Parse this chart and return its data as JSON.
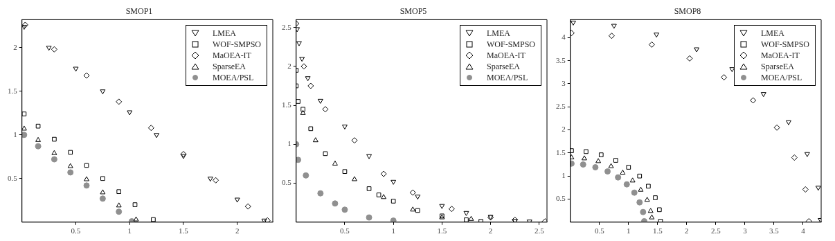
{
  "chart_data": [
    {
      "type": "scatter",
      "title": "SMOP1",
      "xlim": [
        0,
        2.33
      ],
      "ylim": [
        0,
        2.32
      ],
      "xticks": [
        0.5,
        1,
        1.5,
        2
      ],
      "yticks": [
        0.5,
        1,
        1.5,
        2
      ],
      "grid": false,
      "legend": "top right",
      "series": [
        {
          "name": "LMEA",
          "color": "#000000",
          "marker": "triangle-down",
          "x": [
            0.02,
            0.25,
            0.5,
            0.75,
            1.0,
            1.25,
            1.5,
            1.75,
            2.0,
            2.25
          ],
          "values": [
            2.24,
            2.0,
            1.76,
            1.5,
            1.26,
            1.0,
            0.76,
            0.5,
            0.26,
            0.02
          ]
        },
        {
          "name": "WOF-SMPSO",
          "color": "#000000",
          "marker": "square",
          "x": [
            0.02,
            0.15,
            0.3,
            0.45,
            0.6,
            0.75,
            0.9,
            1.05,
            1.22
          ],
          "values": [
            1.24,
            1.1,
            0.95,
            0.8,
            0.65,
            0.5,
            0.35,
            0.2,
            0.03
          ]
        },
        {
          "name": "MaOEA-IT",
          "color": "#000000",
          "marker": "diamond",
          "x": [
            0.03,
            0.3,
            0.6,
            0.9,
            1.2,
            1.5,
            1.8,
            2.1,
            2.28
          ],
          "values": [
            2.26,
            1.98,
            1.68,
            1.38,
            1.08,
            0.78,
            0.48,
            0.18,
            0.02
          ]
        },
        {
          "name": "SparseEA",
          "color": "#000000",
          "marker": "triangle",
          "x": [
            0.02,
            0.15,
            0.3,
            0.45,
            0.6,
            0.75,
            0.9,
            1.06
          ],
          "values": [
            1.07,
            0.94,
            0.79,
            0.64,
            0.49,
            0.34,
            0.19,
            0.03
          ]
        },
        {
          "name": "MOEA/PSL",
          "color": "#909090",
          "marker": "circle",
          "x": [
            0.02,
            0.15,
            0.3,
            0.45,
            0.6,
            0.75,
            0.9,
            1.02
          ],
          "values": [
            1.0,
            0.87,
            0.72,
            0.57,
            0.42,
            0.27,
            0.12,
            0.01
          ]
        }
      ]
    },
    {
      "type": "scatter",
      "title": "SMOP5",
      "xlim": [
        0,
        2.58
      ],
      "ylim": [
        0,
        2.6
      ],
      "xticks": [
        0.5,
        1,
        1.5,
        2,
        2.5
      ],
      "yticks": [
        0.5,
        1,
        1.5,
        2,
        2.5
      ],
      "grid": false,
      "legend": "top right",
      "series": [
        {
          "name": "LMEA",
          "color": "#000000",
          "marker": "triangle-down",
          "x": [
            0.01,
            0.03,
            0.06,
            0.12,
            0.25,
            0.5,
            0.75,
            1.0,
            1.25,
            1.5,
            1.75,
            2.0,
            2.25,
            2.4
          ],
          "values": [
            2.48,
            2.3,
            2.1,
            1.85,
            1.56,
            1.23,
            0.85,
            0.52,
            0.33,
            0.21,
            0.12,
            0.07,
            0.02,
            0.01
          ]
        },
        {
          "name": "WOF-SMPSO",
          "color": "#000000",
          "marker": "square",
          "x": [
            0.0,
            0.0,
            0.02,
            0.07,
            0.15,
            0.3,
            0.5,
            0.75,
            0.85,
            1.0,
            1.25,
            1.5,
            1.75,
            1.9
          ],
          "values": [
            1.95,
            1.75,
            1.55,
            1.45,
            1.2,
            0.88,
            0.65,
            0.43,
            0.35,
            0.27,
            0.15,
            0.08,
            0.03,
            0.01
          ]
        },
        {
          "name": "MaOEA-IT",
          "color": "#000000",
          "marker": "diamond",
          "x": [
            0.0,
            0.08,
            0.15,
            0.3,
            0.6,
            0.9,
            1.2,
            1.6,
            2.0,
            2.25,
            2.56
          ],
          "values": [
            2.55,
            2.0,
            1.75,
            1.45,
            1.05,
            0.62,
            0.38,
            0.17,
            0.06,
            0.03,
            0.01
          ]
        },
        {
          "name": "SparseEA",
          "color": "#000000",
          "marker": "triangle",
          "x": [
            0.07,
            0.2,
            0.4,
            0.6,
            0.9,
            1.2,
            1.5,
            1.8
          ],
          "values": [
            1.4,
            1.05,
            0.75,
            0.55,
            0.32,
            0.16,
            0.06,
            0.04
          ]
        },
        {
          "name": "MOEA/PSL",
          "color": "#909090",
          "marker": "circle",
          "x": [
            0.0,
            0.02,
            0.1,
            0.25,
            0.4,
            0.5,
            0.75,
            1.0
          ],
          "values": [
            1.0,
            0.8,
            0.6,
            0.37,
            0.24,
            0.16,
            0.06,
            0.02
          ]
        }
      ]
    },
    {
      "type": "scatter",
      "title": "SMOP8",
      "xlim": [
        0,
        4.31
      ],
      "ylim": [
        0,
        4.39
      ],
      "xticks": [
        0.5,
        1,
        1.5,
        2,
        2.5,
        3,
        3.5,
        4
      ],
      "yticks": [
        0.5,
        1,
        1.5,
        2,
        2.5,
        3,
        3.5,
        4
      ],
      "grid": false,
      "legend": "top right",
      "series": [
        {
          "name": "LMEA",
          "color": "#000000",
          "marker": "triangle-down",
          "x": [
            0.05,
            0.75,
            1.48,
            2.17,
            2.78,
            3.32,
            3.75,
            4.07,
            4.26,
            4.3
          ],
          "values": [
            4.33,
            4.26,
            4.07,
            3.75,
            3.32,
            2.78,
            2.17,
            1.48,
            0.75,
            0.05
          ]
        },
        {
          "name": "WOF-SMPSO",
          "color": "#000000",
          "marker": "square",
          "x": [
            0.02,
            0.27,
            0.53,
            0.78,
            1.0,
            1.19,
            1.34,
            1.46,
            1.53,
            1.55
          ],
          "values": [
            1.55,
            1.53,
            1.46,
            1.34,
            1.19,
            1.0,
            0.78,
            0.53,
            0.27,
            0.02
          ]
        },
        {
          "name": "MaOEA-IT",
          "color": "#000000",
          "marker": "diamond",
          "x": [
            0.02,
            0.71,
            1.4,
            2.05,
            2.64,
            3.14,
            3.55,
            3.85,
            4.04,
            4.1
          ],
          "values": [
            4.1,
            4.04,
            3.85,
            3.55,
            3.14,
            2.64,
            2.05,
            1.4,
            0.71,
            0.02
          ]
        },
        {
          "name": "SparseEA",
          "color": "#000000",
          "marker": "triangle",
          "x": [
            0.02,
            0.24,
            0.48,
            0.7,
            0.9,
            1.07,
            1.21,
            1.32,
            1.38,
            1.4
          ],
          "values": [
            1.4,
            1.38,
            1.32,
            1.21,
            1.07,
            0.9,
            0.7,
            0.48,
            0.24,
            0.1
          ]
        },
        {
          "name": "MOEA/PSL",
          "color": "#909090",
          "marker": "circle",
          "x": [
            0.02,
            0.22,
            0.43,
            0.64,
            0.82,
            0.97,
            1.1,
            1.19,
            1.25,
            1.27
          ],
          "values": [
            1.27,
            1.25,
            1.19,
            1.1,
            0.97,
            0.82,
            0.64,
            0.43,
            0.22,
            0.02
          ]
        }
      ]
    }
  ]
}
